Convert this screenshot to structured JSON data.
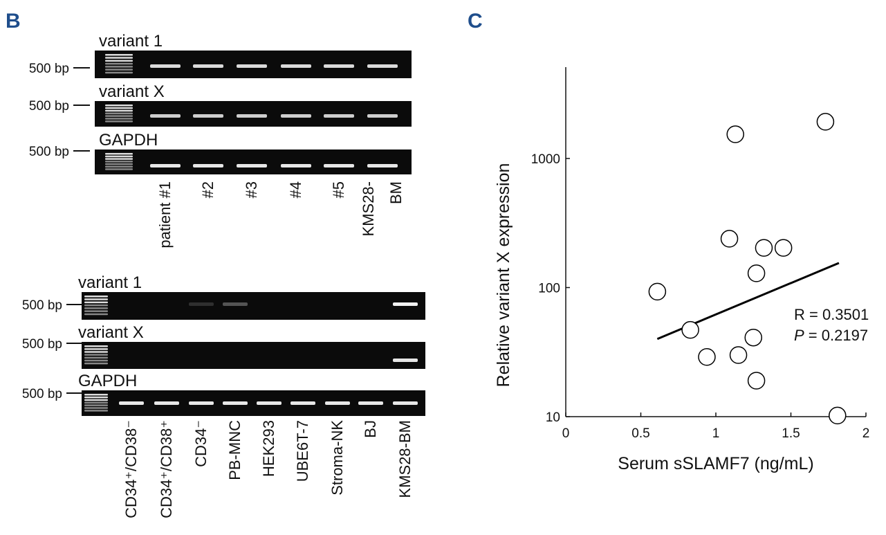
{
  "panel_b": {
    "label": "B",
    "bp_label": "500 bp",
    "top": {
      "gels": [
        "variant 1",
        "variant X",
        "GAPDH"
      ],
      "lanes": [
        "patient #1",
        "#2",
        "#3",
        "#4",
        "#5",
        [
          "KMS28-",
          "BM"
        ]
      ]
    },
    "bottom": {
      "gels": [
        "variant 1",
        "variant X",
        "GAPDH"
      ],
      "lanes": [
        "CD34⁺/CD38⁻",
        "CD34⁺/CD38⁺",
        "CD34⁻",
        "PB-MNC",
        "HEK293",
        "UBE6T-7",
        "Stroma-NK",
        "BJ",
        "KMS28-BM"
      ]
    }
  },
  "chart_data": {
    "type": "scatter",
    "panel_label": "C",
    "xlabel": "Serum sSLAMF7 (ng/mL)",
    "ylabel": "Relative variant X expression",
    "x": [
      0.61,
      1.13,
      1.73,
      1.09,
      1.32,
      1.45,
      1.27,
      0.83,
      0.94,
      1.15,
      1.25,
      1.27,
      1.81
    ],
    "values": [
      93,
      1540,
      1925,
      239,
      203,
      203,
      129,
      47,
      29,
      30,
      41,
      19,
      10.2
    ],
    "xlim": [
      0,
      2
    ],
    "xticks": [
      0,
      0.5,
      1,
      1.5,
      2
    ],
    "ylim": [
      10,
      5100
    ],
    "yticks": [
      10,
      100,
      1000
    ],
    "log_y": true,
    "marker_color": "#000000",
    "fit_line": {
      "x": [
        0.61,
        1.82
      ],
      "values": [
        40,
        155
      ]
    },
    "annotations": {
      "r": "R = 0.3501",
      "p_symbol": "P",
      "p_text": " = 0.2197"
    }
  }
}
